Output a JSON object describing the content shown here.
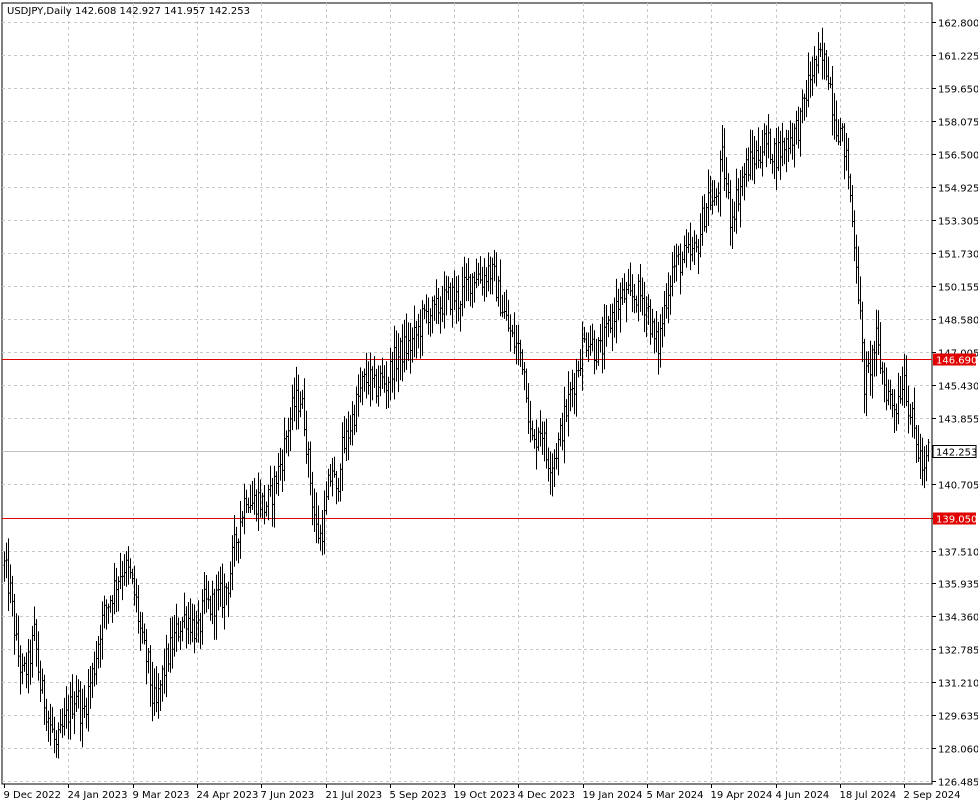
{
  "header": {
    "symbol": "USDJPY,Daily",
    "ohlc": "142.608 142.927 141.957 142.253"
  },
  "colors": {
    "background": "#ffffff",
    "grid": "#c8c8c8",
    "bars": "#000000",
    "level_line": "#e00000",
    "current_line": "#c0c0c0",
    "current_label_bg": "#ffffff",
    "level_label_bg": "#e00000",
    "level_label_text": "#ffffff"
  },
  "chart_data": {
    "type": "bar",
    "chart_style": "ohlc",
    "grid": true,
    "ylim": [
      126.485,
      162.8
    ],
    "y_ticks": [
      162.8,
      161.225,
      159.65,
      158.075,
      156.5,
      154.925,
      153.305,
      151.73,
      150.155,
      148.58,
      147.005,
      145.43,
      143.855,
      142.253,
      140.705,
      139.05,
      137.51,
      135.935,
      134.36,
      132.785,
      131.21,
      129.635,
      128.06,
      126.485
    ],
    "y_tick_labels": [
      "162.800",
      "161.225",
      "159.650",
      "158.075",
      "156.500",
      "154.925",
      "153.305",
      "151.730",
      "150.155",
      "148.580",
      "147.005",
      "145.430",
      "143.855",
      "142.253",
      "140.705",
      "139.050",
      "137.510",
      "135.935",
      "134.360",
      "132.785",
      "131.210",
      "129.635",
      "128.060",
      "126.485"
    ],
    "x_tick_labels": [
      "9 Dec 2022",
      "24 Jan 2023",
      "9 Mar 2023",
      "24 Apr 2023",
      "7 Jun 2023",
      "21 Jul 2023",
      "5 Sep 2023",
      "19 Oct 2023",
      "4 Dec 2023",
      "19 Jan 2024",
      "5 Mar 2024",
      "19 Apr 2024",
      "4 Jun 2024",
      "18 Jul 2024",
      "2 Sep 2024"
    ],
    "current_price": 142.253,
    "current_price_label": "142.253",
    "levels": [
      {
        "value": 146.69,
        "label": "146.690"
      },
      {
        "value": 139.05,
        "label": "139.050"
      }
    ],
    "close_path": [
      [
        0,
        136.8
      ],
      [
        6,
        135.5
      ],
      [
        12,
        133.0
      ],
      [
        18,
        131.5
      ],
      [
        24,
        132.0
      ],
      [
        30,
        133.5
      ],
      [
        36,
        131.0
      ],
      [
        42,
        130.0
      ],
      [
        48,
        128.8
      ],
      [
        52,
        128.0
      ],
      [
        56,
        128.6
      ],
      [
        60,
        129.2
      ],
      [
        66,
        130.0
      ],
      [
        72,
        130.8
      ],
      [
        78,
        129.5
      ],
      [
        84,
        130.8
      ],
      [
        90,
        132.0
      ],
      [
        96,
        133.8
      ],
      [
        102,
        134.8
      ],
      [
        108,
        135.5
      ],
      [
        114,
        136.3
      ],
      [
        120,
        136.8
      ],
      [
        126,
        136.2
      ],
      [
        132,
        135.0
      ],
      [
        138,
        133.0
      ],
      [
        144,
        132.0
      ],
      [
        148,
        130.5
      ],
      [
        152,
        130.0
      ],
      [
        158,
        131.5
      ],
      [
        164,
        132.5
      ],
      [
        170,
        133.3
      ],
      [
        176,
        134.0
      ],
      [
        182,
        134.4
      ],
      [
        188,
        134.0
      ],
      [
        194,
        133.5
      ],
      [
        200,
        135.0
      ],
      [
        206,
        134.8
      ],
      [
        212,
        135.2
      ],
      [
        218,
        135.3
      ],
      [
        224,
        136.0
      ],
      [
        230,
        137.6
      ],
      [
        236,
        139.0
      ],
      [
        242,
        140.3
      ],
      [
        248,
        139.8
      ],
      [
        254,
        140.0
      ],
      [
        260,
        139.6
      ],
      [
        266,
        140.0
      ],
      [
        272,
        141.0
      ],
      [
        278,
        142.0
      ],
      [
        284,
        143.5
      ],
      [
        290,
        144.5
      ],
      [
        296,
        144.8
      ],
      [
        300,
        143.8
      ],
      [
        304,
        141.8
      ],
      [
        308,
        140.0
      ],
      [
        312,
        138.5
      ],
      [
        316,
        138.2
      ],
      [
        320,
        139.0
      ],
      [
        324,
        140.5
      ],
      [
        328,
        141.5
      ],
      [
        332,
        140.0
      ],
      [
        336,
        142.0
      ],
      [
        340,
        142.5
      ],
      [
        346,
        143.5
      ],
      [
        352,
        144.5
      ],
      [
        358,
        145.4
      ],
      [
        364,
        145.8
      ],
      [
        370,
        145.2
      ],
      [
        376,
        145.7
      ],
      [
        382,
        145.5
      ],
      [
        388,
        146.4
      ],
      [
        394,
        146.8
      ],
      [
        400,
        147.2
      ],
      [
        406,
        147.3
      ],
      [
        412,
        147.8
      ],
      [
        418,
        148.5
      ],
      [
        424,
        149.0
      ],
      [
        430,
        148.8
      ],
      [
        436,
        149.3
      ],
      [
        442,
        149.5
      ],
      [
        448,
        149.7
      ],
      [
        454,
        149.5
      ],
      [
        460,
        150.0
      ],
      [
        466,
        150.5
      ],
      [
        472,
        150.8
      ],
      [
        478,
        150.5
      ],
      [
        484,
        151.0
      ],
      [
        490,
        150.5
      ],
      [
        496,
        149.5
      ],
      [
        502,
        148.5
      ],
      [
        508,
        147.6
      ],
      [
        514,
        147.2
      ],
      [
        518,
        146.7
      ],
      [
        522,
        145.5
      ],
      [
        526,
        143.0
      ],
      [
        530,
        142.5
      ],
      [
        534,
        143.5
      ],
      [
        538,
        143.3
      ],
      [
        542,
        142.0
      ],
      [
        548,
        141.8
      ],
      [
        554,
        142.6
      ],
      [
        560,
        143.8
      ],
      [
        566,
        145.0
      ],
      [
        572,
        146.0
      ],
      [
        578,
        147.3
      ],
      [
        584,
        147.8
      ],
      [
        590,
        147.2
      ],
      [
        596,
        147.0
      ],
      [
        602,
        147.8
      ],
      [
        608,
        148.8
      ],
      [
        614,
        149.3
      ],
      [
        620,
        149.7
      ],
      [
        626,
        149.5
      ],
      [
        632,
        149.8
      ],
      [
        638,
        149.6
      ],
      [
        644,
        149.0
      ],
      [
        650,
        147.5
      ],
      [
        654,
        147.3
      ],
      [
        658,
        148.5
      ],
      [
        662,
        149.7
      ],
      [
        668,
        151.0
      ],
      [
        674,
        151.3
      ],
      [
        680,
        151.5
      ],
      [
        686,
        151.6
      ],
      [
        692,
        151.8
      ],
      [
        698,
        153.3
      ],
      [
        704,
        154.5
      ],
      [
        710,
        154.0
      ],
      [
        714,
        155.0
      ],
      [
        718,
        156.2
      ],
      [
        722,
        155.0
      ],
      [
        726,
        153.5
      ],
      [
        730,
        154.0
      ],
      [
        736,
        155.0
      ],
      [
        742,
        155.8
      ],
      [
        748,
        156.2
      ],
      [
        754,
        156.5
      ],
      [
        760,
        157.0
      ],
      [
        766,
        156.8
      ],
      [
        772,
        156.5
      ],
      [
        778,
        156.8
      ],
      [
        784,
        157.2
      ],
      [
        790,
        157.5
      ],
      [
        796,
        158.0
      ],
      [
        800,
        159.0
      ],
      [
        804,
        159.8
      ],
      [
        808,
        160.5
      ],
      [
        812,
        160.8
      ],
      [
        816,
        161.0
      ],
      [
        820,
        160.8
      ],
      [
        824,
        160.5
      ],
      [
        828,
        159.0
      ],
      [
        832,
        158.0
      ],
      [
        836,
        157.5
      ],
      [
        840,
        156.8
      ],
      [
        844,
        155.5
      ],
      [
        848,
        153.3
      ],
      [
        852,
        151.5
      ],
      [
        856,
        148.5
      ],
      [
        860,
        145.5
      ],
      [
        864,
        146.0
      ],
      [
        868,
        146.8
      ],
      [
        872,
        147.5
      ],
      [
        876,
        146.5
      ],
      [
        880,
        145.5
      ],
      [
        884,
        145.0
      ],
      [
        888,
        144.6
      ],
      [
        892,
        144.5
      ],
      [
        896,
        145.3
      ],
      [
        900,
        146.0
      ],
      [
        904,
        144.5
      ],
      [
        908,
        143.6
      ],
      [
        912,
        142.6
      ],
      [
        916,
        142.0
      ],
      [
        920,
        141.0
      ],
      [
        924,
        142.4
      ],
      [
        928,
        142.25
      ]
    ]
  }
}
